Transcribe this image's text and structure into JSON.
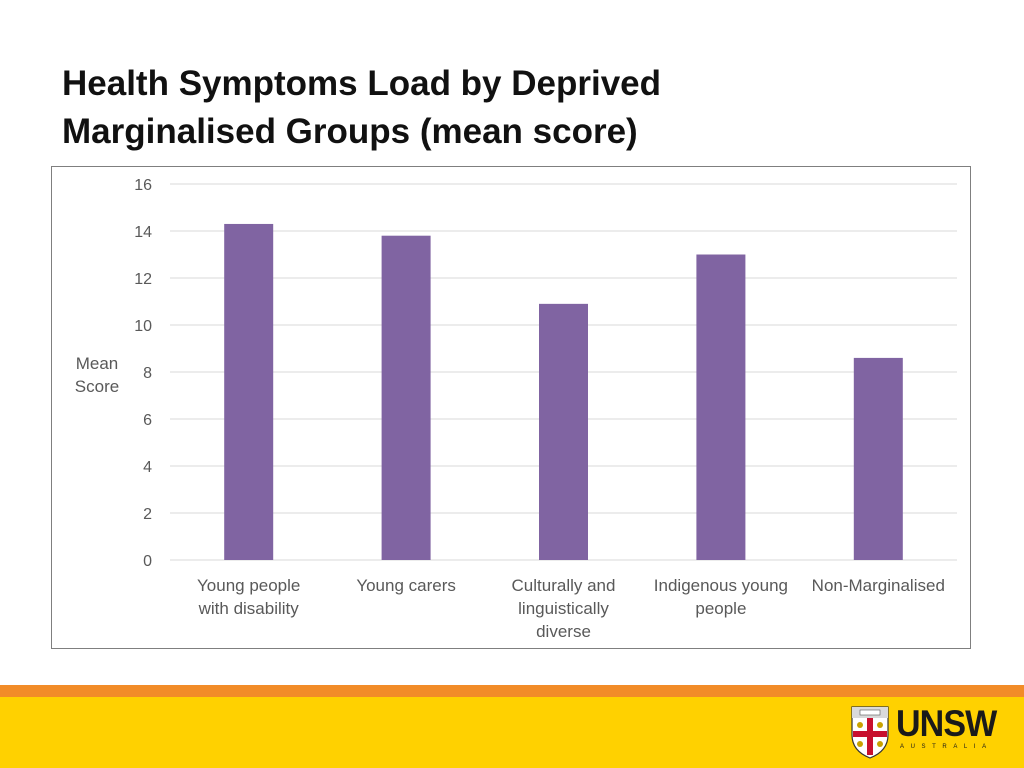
{
  "slide": {
    "title_line1": "Health Symptoms Load by Deprived",
    "title_line2": "Marginalised Groups (mean score)"
  },
  "chart_data": {
    "type": "bar",
    "title": "",
    "xlabel": "",
    "ylabel_lines": [
      "Mean",
      "Score"
    ],
    "categories": [
      [
        "Young people",
        "with disability"
      ],
      [
        "Young carers"
      ],
      [
        "Culturally and",
        "linguistically",
        "diverse"
      ],
      [
        "Indigenous young",
        "people"
      ],
      [
        "Non-Marginalised"
      ]
    ],
    "values": [
      14.3,
      13.8,
      10.9,
      13.0,
      8.6
    ],
    "ylim": [
      0,
      16
    ],
    "yticks": [
      "0",
      "2",
      "4",
      "6",
      "8",
      "10",
      "12",
      "14",
      "16"
    ],
    "grid": true,
    "legend": "none",
    "bar_color": "#8064a2",
    "grid_color": "#d9d9d9"
  },
  "footer": {
    "logo_name": "UNSW",
    "logo_sub": "AUSTRALIA",
    "brand_orange": "#f28c28",
    "brand_yellow": "#ffd100"
  },
  "icons": {
    "logo_crest": "unsw-crest-icon"
  }
}
